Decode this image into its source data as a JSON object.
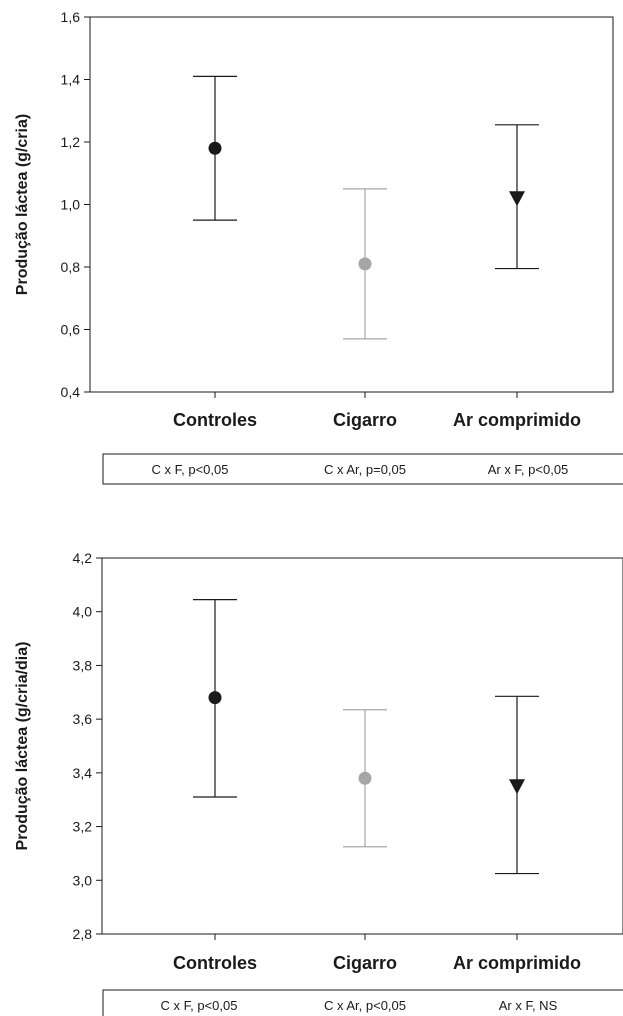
{
  "chart_data": [
    {
      "type": "scatter",
      "title": "",
      "xlabel": "",
      "ylabel": "Produção láctea (g/cria)",
      "ylim": [
        0.4,
        1.6
      ],
      "yticks": [
        "0,4",
        "0,6",
        "0,8",
        "1,0",
        "1,2",
        "1,4",
        "1,6"
      ],
      "categories": [
        "Controles",
        "Cigarro",
        "Ar comprimido"
      ],
      "series": [
        {
          "category": "Controles",
          "value": 1.18,
          "low": 0.95,
          "high": 1.41,
          "marker": "circle",
          "color": "#1a1a1a"
        },
        {
          "category": "Cigarro",
          "value": 0.81,
          "low": 0.57,
          "high": 1.05,
          "marker": "circle",
          "color": "#a6a6a6"
        },
        {
          "category": "Ar comprimido",
          "value": 1.02,
          "low": 0.795,
          "high": 1.255,
          "marker": "triangle-down",
          "color": "#1a1a1a"
        }
      ],
      "stats": [
        "C x F,  p<0,05",
        "C x Ar,  p=0,05",
        "Ar x F,  p<0,05"
      ]
    },
    {
      "type": "scatter",
      "title": "",
      "xlabel": "",
      "ylabel": "Produção láctea (g/cria/dia)",
      "ylim": [
        2.8,
        4.2
      ],
      "yticks": [
        "2,8",
        "3,0",
        "3,2",
        "3,4",
        "3,6",
        "3,8",
        "4,0",
        "4,2"
      ],
      "categories": [
        "Controles",
        "Cigarro",
        "Ar comprimido"
      ],
      "series": [
        {
          "category": "Controles",
          "value": 3.68,
          "low": 3.31,
          "high": 4.045,
          "marker": "circle",
          "color": "#1a1a1a"
        },
        {
          "category": "Cigarro",
          "value": 3.38,
          "low": 3.125,
          "high": 3.635,
          "marker": "circle",
          "color": "#a6a6a6"
        },
        {
          "category": "Ar comprimido",
          "value": 3.35,
          "low": 3.025,
          "high": 3.685,
          "marker": "triangle-down",
          "color": "#1a1a1a"
        }
      ],
      "stats": [
        "C x F,  p<0,05",
        "C x Ar,  p<0,05",
        "Ar x F,  NS"
      ]
    }
  ]
}
